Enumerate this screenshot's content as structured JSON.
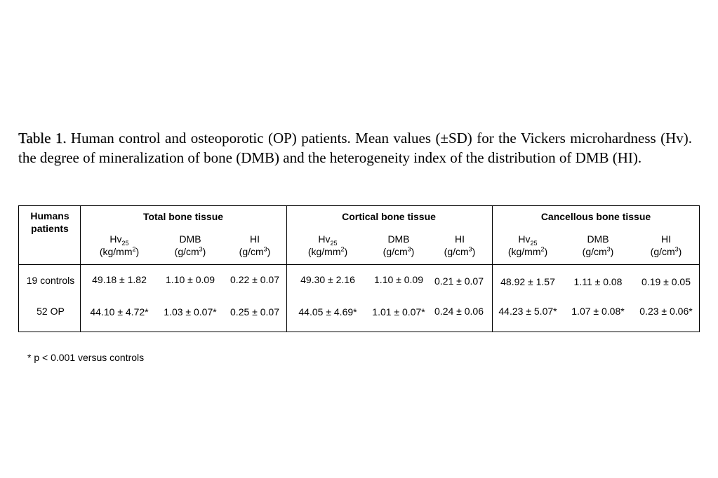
{
  "caption": {
    "label": "Table 1.",
    "text": " Human control and osteoporotic (OP) patients. Mean values (±SD) for the Vickers microhardness (Hv). the degree of mineralization of bone (DMB) and the heterogeneity index of the distribution of DMB (HI)."
  },
  "table": {
    "row_header_line1": "Humans",
    "row_header_line2": "patients",
    "groups": [
      "Total bone tissue",
      "Cortical bone tissue",
      "Cancellous bone tissue"
    ],
    "columns": {
      "hv_base": "Hv",
      "hv_sub": "25",
      "hv_unit_base": "(kg/mm",
      "hv_unit_sup": "2",
      "dmb": "DMB",
      "dmb_unit_base": "(g/cm",
      "dmb_unit_sup": "3",
      "hi": "HI",
      "hi_unit_base": "(g/cm",
      "hi_unit_sup": "3",
      "close_paren": ")"
    },
    "rows": [
      {
        "label": "19 controls",
        "values": [
          "49.18 ± 1.82",
          "1.10 ± 0.09",
          "0.22 ± 0.07",
          "49.30 ± 2.16",
          "1.10 ± 0.09",
          "0.21 ± 0.07",
          "48.92 ± 1.57",
          "1.11 ± 0.08",
          "0.19 ± 0.05"
        ]
      },
      {
        "label": "52 OP",
        "values": [
          "44.10 ± 4.72*",
          "1.03 ± 0.07*",
          "0.25 ± 0.07",
          "44.05 ± 4.69*",
          "1.01 ± 0.07*",
          "0.24 ± 0.06",
          "44.23 ± 5.07*",
          "1.07 ± 0.08*",
          "0.23 ± 0.06*"
        ]
      }
    ]
  },
  "footnote": "* p < 0.001 versus controls"
}
